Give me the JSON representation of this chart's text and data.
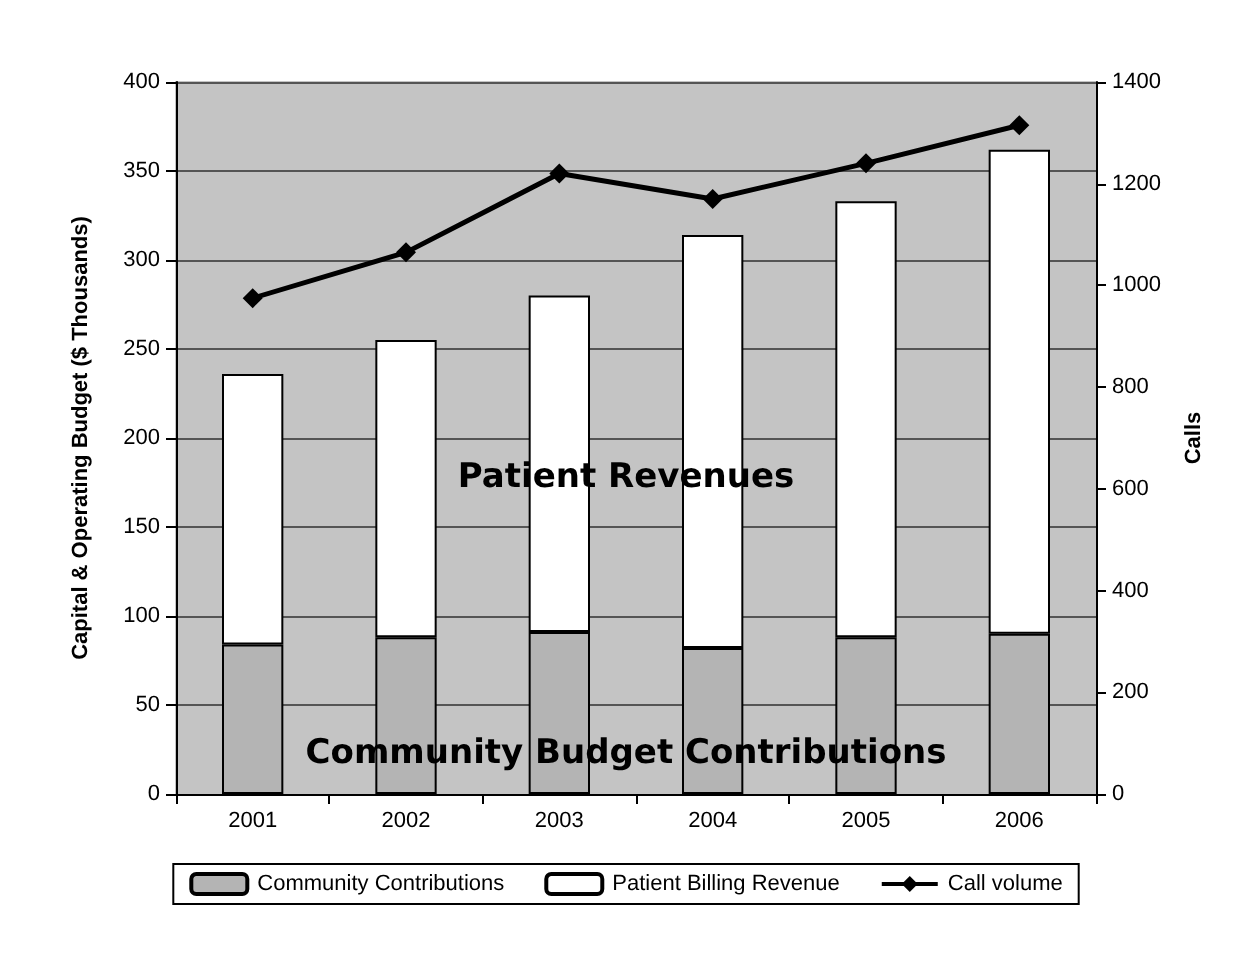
{
  "chart_data": {
    "type": "bar",
    "stacked": true,
    "categories": [
      "2001",
      "2002",
      "2003",
      "2004",
      "2005",
      "2006"
    ],
    "ylabel": "Capital & Operating Budget ($ Thousands)",
    "y2label": "Calls",
    "series": [
      {
        "name": "Community Contributions",
        "color": "#b4b4b4",
        "values": [
          84,
          88,
          91,
          82,
          88,
          90
        ]
      },
      {
        "name": "Patient Billing Revenue",
        "color": "#ffffff",
        "values": [
          152,
          167,
          189,
          232,
          245,
          272
        ]
      },
      {
        "name": "Call volume",
        "type": "line",
        "axis": "y2",
        "color": "#000000",
        "marker": "diamond",
        "values": [
          975,
          1065,
          1220,
          1170,
          1240,
          1315
        ]
      }
    ],
    "ylim": [
      0,
      400
    ],
    "yticks": [
      0,
      50,
      100,
      150,
      200,
      250,
      300,
      350,
      400
    ],
    "y2lim": [
      0,
      1400
    ],
    "y2ticks": [
      0,
      200,
      400,
      600,
      800,
      1000,
      1200,
      1400
    ],
    "grid": "y",
    "legend": "bottom",
    "annotations": [
      "Patient Revenues",
      "Community Budget Contributions"
    ]
  }
}
